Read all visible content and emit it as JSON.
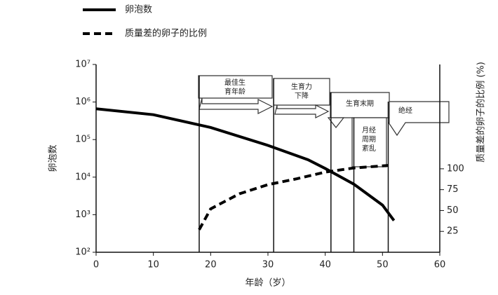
{
  "chart_data": {
    "type": "line",
    "log_y": true,
    "x_label": "年龄（岁）",
    "y_label": "卵泡数",
    "y2_label": "质量差的卵子的比例 (%)",
    "xlim": [
      0,
      60
    ],
    "xticks": [
      0,
      10,
      20,
      30,
      40,
      50,
      60
    ],
    "ylim": [
      100,
      10000000
    ],
    "yticks": [
      {
        "value": 100,
        "label": "10²"
      },
      {
        "value": 1000,
        "label": "10³"
      },
      {
        "value": 10000,
        "label": "10⁴"
      },
      {
        "value": 100000,
        "label": "10⁵"
      },
      {
        "value": 1000000,
        "label": "10⁶"
      },
      {
        "value": 10000000,
        "label": "10⁷"
      }
    ],
    "y2lim": [
      0,
      225
    ],
    "y2ticks": [
      25,
      50,
      75,
      100
    ],
    "series": [
      {
        "name": "卵泡数",
        "color": "#000000",
        "dash": false,
        "x": [
          0,
          10,
          20,
          30,
          37,
          40,
          45,
          50,
          52
        ],
        "values": [
          660000,
          460000,
          210000,
          70000,
          29000,
          17000,
          6500,
          1800,
          700
        ]
      },
      {
        "name": "质量差的卵子的比例",
        "color": "#000000",
        "dash": true,
        "axis": "y2",
        "x": [
          18,
          20,
          25,
          30,
          35,
          40,
          45,
          51
        ],
        "values": [
          27,
          52,
          70,
          81,
          88,
          96,
          101,
          104
        ]
      }
    ],
    "stages": [
      {
        "x": 18,
        "lines": [
          "最佳生",
          "育年龄"
        ]
      },
      {
        "x": 31,
        "lines": [
          "生育力",
          "下降"
        ]
      },
      {
        "x": 41,
        "lines": [
          "生育末期"
        ]
      },
      {
        "x": 45,
        "lines": [
          "月经",
          "周期",
          "紊乱"
        ]
      },
      {
        "x": 51,
        "lines": [
          "绝经"
        ]
      }
    ]
  }
}
